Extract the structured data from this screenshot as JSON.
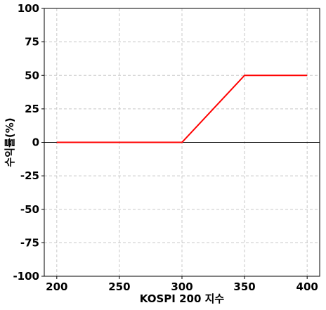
{
  "chart_data": {
    "type": "line",
    "title": "",
    "xlabel": "KOSPI 200 지수",
    "ylabel": "수익률(%)",
    "xlim": [
      190,
      410
    ],
    "ylim": [
      -100,
      100
    ],
    "xticks": [
      200,
      250,
      300,
      350,
      400
    ],
    "yticks": [
      100,
      75,
      50,
      25,
      0,
      -25,
      -50,
      -75,
      -100
    ],
    "grid": true,
    "legend": "none",
    "series": [
      {
        "color": "#ff0000",
        "points": [
          [
            200,
            0
          ],
          [
            300,
            0
          ],
          [
            350,
            50
          ],
          [
            400,
            50
          ]
        ]
      }
    ],
    "reference_line": {
      "y": 0,
      "color": "#000000"
    }
  }
}
